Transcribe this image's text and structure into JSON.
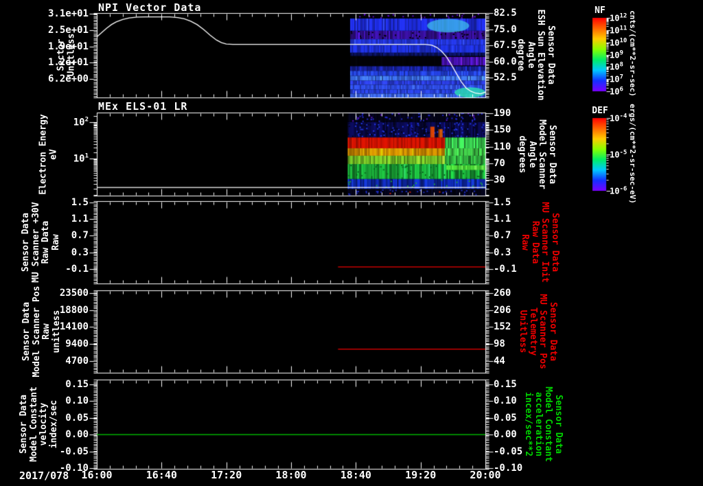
{
  "page": {
    "background": "#000000",
    "text_color": "#ffffff",
    "date_label": "2017/078"
  },
  "chart_data": {
    "type": "multi-panel time series (2 spectrograms + 3 line plots)",
    "x_axis": {
      "date": "2017/078",
      "t_start_min": 0,
      "t_end_min": 240,
      "major_tick_every_min": 40,
      "minor_tick_every_min": 8,
      "labels": [
        {
          "t": 0,
          "text": "16:00"
        },
        {
          "t": 40,
          "text": "16:40"
        },
        {
          "t": 80,
          "text": "17:20"
        },
        {
          "t": 120,
          "text": "18:00"
        },
        {
          "t": 160,
          "text": "18:40"
        },
        {
          "t": 200,
          "text": "19:20"
        },
        {
          "t": 240,
          "text": "20:00"
        }
      ]
    },
    "panels": [
      {
        "id": "npi",
        "type": "line+spectrogram",
        "title": "NPI Vector Data",
        "left_label": "Sector\nUnitless",
        "left_label_color": "#ffffff",
        "right_label": "Sensor Data\nESH Sun Elevation\nAngle\ndegree",
        "right_label_color": "#ffffff",
        "left_axis": {
          "min": -0.9,
          "max": 31.3,
          "ticks": [
            {
              "v": 31.0,
              "label": "3.1e+01"
            },
            {
              "v": 24.8,
              "label": "2.5e+01"
            },
            {
              "v": 18.6,
              "label": "1.9e+01"
            },
            {
              "v": 12.4,
              "label": "1.2e+01"
            },
            {
              "v": 6.2,
              "label": "6.2e+00"
            }
          ]
        },
        "right_axis": {
          "min": 43.3,
          "max": 82.6,
          "ticks": [
            {
              "v": 82.5,
              "label": "82.5"
            },
            {
              "v": 75.0,
              "label": "75.0"
            },
            {
              "v": 67.5,
              "label": "67.5"
            },
            {
              "v": 60.0,
              "label": "60.0"
            },
            {
              "v": 52.5,
              "label": "52.5"
            }
          ]
        },
        "series": [
          {
            "name": "esh-sun-elevation-angle",
            "axis": "right",
            "color": "#ffffff",
            "points": [
              [
                0,
                71.5
              ],
              [
                3,
                73.5
              ],
              [
                6,
                75.5
              ],
              [
                9,
                77.2
              ],
              [
                12,
                78.5
              ],
              [
                16,
                79.6
              ],
              [
                20,
                80.3
              ],
              [
                25,
                80.7
              ],
              [
                30,
                80.8
              ],
              [
                45,
                80.8
              ],
              [
                50,
                80.5
              ],
              [
                54,
                79.9
              ],
              [
                58,
                78.8
              ],
              [
                62,
                77.2
              ],
              [
                66,
                74.9
              ],
              [
                70,
                72.3
              ],
              [
                74,
                70.0
              ],
              [
                77,
                68.8
              ],
              [
                80,
                68.2
              ],
              [
                84,
                68.0
              ],
              [
                203,
                68.0
              ],
              [
                207,
                67.6
              ],
              [
                210,
                66.6
              ],
              [
                213,
                64.8
              ],
              [
                216,
                62.2
              ],
              [
                219,
                58.6
              ],
              [
                222,
                54.6
              ],
              [
                225,
                50.8
              ],
              [
                228,
                47.8
              ],
              [
                231,
                46.2
              ],
              [
                234,
                45.3
              ],
              [
                237,
                45.0
              ],
              [
                240,
                45.8
              ]
            ]
          }
        ],
        "spectrogram": {
          "t0": 156.5,
          "t1": 240,
          "bands": [
            {
              "f0": 0.0,
              "f1": 0.065,
              "base": "#020208",
              "var": 0.2,
              "speckles": [
                {
                  "color": "#5c08c8",
                  "density": 0.3
                }
              ]
            },
            {
              "f0": 0.065,
              "f1": 0.21,
              "base": "#1e2ce0",
              "var": 0.3
            },
            {
              "f0": 0.21,
              "f1": 0.31,
              "base": "#350f96",
              "var": 0.35,
              "speckles": [
                {
                  "color": "#000000",
                  "density": 0.3
                }
              ]
            },
            {
              "f0": 0.31,
              "f1": 0.38,
              "base": "#2336de",
              "var": 0.25
            },
            {
              "f0": 0.38,
              "f1": 0.47,
              "base": "#1e30d8",
              "var": 0.25
            },
            {
              "f0": 0.47,
              "f1": 0.51,
              "base": "#0a1260",
              "var": 0.4
            },
            {
              "f0": 0.51,
              "f1": 0.63,
              "base": "#030308",
              "var": 0.2
            },
            {
              "t0": 213,
              "f0": 0.52,
              "f1": 0.62,
              "base": "#4712b0",
              "var": 0.35
            },
            {
              "f0": 0.63,
              "f1": 0.685,
              "base": "#18229e",
              "var": 0.3
            },
            {
              "f0": 0.685,
              "f1": 0.745,
              "base": "#2442e6",
              "var": 0.3
            },
            {
              "f0": 0.745,
              "f1": 0.8,
              "base": "#3b6ef0",
              "var": 0.3
            },
            {
              "f0": 0.8,
              "f1": 0.85,
              "base": "#2a3cdc",
              "var": 0.25
            },
            {
              "f0": 0.85,
              "f1": 0.905,
              "base": "#2e4ce4",
              "var": 0.25
            },
            {
              "f0": 0.905,
              "f1": 0.955,
              "base": "#2840e0",
              "var": 0.25
            },
            {
              "f0": 0.955,
              "f1": 1.0,
              "base": "#3a64ee",
              "var": 0.3
            }
          ],
          "features": [
            {
              "type": "blob",
              "t0": 204,
              "t1": 230,
              "f0": 0.07,
              "f1": 0.23,
              "color": "#40c8ea",
              "alpha": 0.7
            },
            {
              "type": "blob",
              "t0": 221,
              "t1": 240,
              "f0": 0.88,
              "f1": 1.0,
              "color": "#2ce6b4",
              "alpha": 0.8
            }
          ]
        }
      },
      {
        "id": "els",
        "type": "spectrogram+line",
        "title": "MEx ELS-01 LR",
        "left_label": "Electron Energy\neV",
        "left_label_color": "#ffffff",
        "right_label": "Sensor Data\nModel Scanner\nAngle\ndegrees",
        "right_label_color": "#ffffff",
        "left_axis": {
          "scale": "log",
          "min": 0.95,
          "max": 185,
          "ticks": [
            {
              "v": 100,
              "label": "10^2",
              "exp": "2"
            },
            {
              "v": 10,
              "label": "10^1",
              "exp": "1"
            }
          ]
        },
        "right_axis": {
          "min": -7.7,
          "max": 191.5,
          "ticks": [
            {
              "v": 190,
              "label": "190"
            },
            {
              "v": 150,
              "label": "150"
            },
            {
              "v": 110,
              "label": "110"
            },
            {
              "v": 70,
              "label": "70"
            },
            {
              "v": 30,
              "label": "30"
            }
          ]
        },
        "series": [
          {
            "name": "energy-baseline-marker",
            "axis": "left",
            "color": "#ffffff",
            "points": [
              [
                0,
                1.6
              ],
              [
                240,
                1.6
              ]
            ]
          }
        ],
        "spectrogram": {
          "t0": 155,
          "t1": 240,
          "bands": [
            {
              "f0": 0.0,
              "f1": 0.115,
              "base": "#04041a",
              "var": 0.4,
              "speckles": [
                {
                  "color": "#2228cc",
                  "density": 0.3
                },
                {
                  "color": "#5a10c0",
                  "density": 0.08
                }
              ]
            },
            {
              "f0": 0.115,
              "f1": 0.3,
              "base": "#0a0a50",
              "var": 0.55,
              "speckles": [
                {
                  "color": "#2238e0",
                  "density": 0.35
                },
                {
                  "color": "#04041a",
                  "density": 0.25
                }
              ]
            },
            {
              "t1": 215,
              "f0": 0.3,
              "f1": 0.43,
              "base": "#e81400",
              "var": 0.3
            },
            {
              "t0": 215,
              "f0": 0.3,
              "f1": 0.43,
              "base": "#34b848",
              "var": 0.4
            },
            {
              "t1": 215,
              "f0": 0.43,
              "f1": 0.52,
              "base": "#eea000",
              "var": 0.3
            },
            {
              "t0": 215,
              "f0": 0.43,
              "f1": 0.52,
              "base": "#3cbc44",
              "var": 0.4
            },
            {
              "t1": 215,
              "f0": 0.52,
              "f1": 0.62,
              "base": "#7ed22a",
              "var": 0.35
            },
            {
              "t0": 215,
              "f0": 0.52,
              "f1": 0.62,
              "base": "#32b040",
              "var": 0.4
            },
            {
              "f0": 0.62,
              "f1": 0.8,
              "base": "#1cb43c",
              "var": 0.45,
              "speckles": [
                {
                  "color": "#0a6a20",
                  "density": 0.2
                }
              ]
            },
            {
              "t0": 216,
              "f0": 0.635,
              "f1": 0.69,
              "base": "#55e83c",
              "var": 0.25
            },
            {
              "f0": 0.8,
              "f1": 0.92,
              "base": "#1230c8",
              "var": 0.5,
              "speckles": [
                {
                  "color": "#1e9c46",
                  "density": 0.12
                }
              ]
            },
            {
              "f0": 0.92,
              "f1": 1.0,
              "base": "#04041a",
              "var": 0.5,
              "speckles": [
                {
                  "color": "#1c2cc0",
                  "density": 0.3
                },
                {
                  "color": "#cc2200",
                  "density": 0.02
                }
              ]
            },
            {
              "t0": 206,
              "t1": 208.5,
              "f0": 0.17,
              "f1": 0.3,
              "base": "#d84400",
              "var": 0.3
            },
            {
              "t0": 211,
              "t1": 213,
              "f0": 0.2,
              "f1": 0.3,
              "base": "#cc5500",
              "var": 0.3
            }
          ],
          "features": []
        }
      },
      {
        "id": "mu-scanner-30v",
        "type": "line",
        "left_label": "Sensor Data\nMU Scanner +30V\nRaw Data\nRaw",
        "left_label_color": "#ffffff",
        "right_label": "Sensor Data\nMU Scanner Init\nRaw Data\nRaw",
        "right_label_color": "#ee0000",
        "left_axis": {
          "min": -0.447,
          "max": 1.533,
          "ticks": [
            {
              "v": 1.5,
              "label": "1.5"
            },
            {
              "v": 1.1,
              "label": "1.1"
            },
            {
              "v": 0.7,
              "label": "0.7"
            },
            {
              "v": 0.3,
              "label": "0.3"
            },
            {
              "v": -0.1,
              "label": "-0.1"
            }
          ]
        },
        "right_axis": {
          "min": -0.447,
          "max": 1.533,
          "ticks": [
            {
              "v": 1.5,
              "label": "1.5"
            },
            {
              "v": 1.1,
              "label": "1.1"
            },
            {
              "v": 0.7,
              "label": "0.7"
            },
            {
              "v": 0.3,
              "label": "0.3"
            },
            {
              "v": -0.1,
              "label": "-0.1"
            }
          ]
        },
        "series": [
          {
            "name": "mu-scanner-init-raw",
            "axis": "right",
            "color": "#ee0000",
            "points": [
              [
                149,
                -0.05
              ],
              [
                240,
                -0.05
              ]
            ]
          }
        ]
      },
      {
        "id": "model-scanner-pos",
        "type": "line",
        "left_label": "Sensor Data\nModel Scanner Pos\nRaw\nunitless",
        "left_label_color": "#ffffff",
        "right_label": "Sensor Data\nMU Scanner Pos\nTelemetry\nUnitless",
        "right_label_color": "#ee0000",
        "left_axis": {
          "min": 1470,
          "max": 24260,
          "ticks": [
            {
              "v": 23500,
              "label": "23500"
            },
            {
              "v": 18800,
              "label": "18800"
            },
            {
              "v": 14100,
              "label": "14100"
            },
            {
              "v": 9400,
              "label": "9400"
            },
            {
              "v": 4700,
              "label": "4700"
            }
          ]
        },
        "right_axis": {
          "min": 6.9,
          "max": 268.7,
          "ticks": [
            {
              "v": 260,
              "label": "260"
            },
            {
              "v": 206,
              "label": "206"
            },
            {
              "v": 152,
              "label": "152"
            },
            {
              "v": 98,
              "label": "98"
            },
            {
              "v": 44,
              "label": "44"
            }
          ]
        },
        "series": [
          {
            "name": "mu-scanner-pos-telemetry",
            "axis": "right",
            "color": "#ee0000",
            "points": [
              [
                149,
                82
              ],
              [
                240,
                82
              ]
            ]
          }
        ]
      },
      {
        "id": "model-constant",
        "type": "line",
        "left_label": "Sensor Data\nModel Constant\nvelocity\nindex/sec",
        "left_label_color": "#ffffff",
        "right_label": "Sensor Data\nModel Constant\nacceleration\nincex/sec**2",
        "right_label_color": "#00d400",
        "left_axis": {
          "min": -0.1021,
          "max": 0.1643,
          "ticks": [
            {
              "v": 0.15,
              "label": "0.15"
            },
            {
              "v": 0.1,
              "label": "0.10"
            },
            {
              "v": 0.05,
              "label": "0.05"
            },
            {
              "v": 0.0,
              "label": "0.00"
            },
            {
              "v": -0.05,
              "label": "-0.05"
            },
            {
              "v": -0.1,
              "label": "-0.10"
            }
          ]
        },
        "right_axis": {
          "min": -0.1021,
          "max": 0.1643,
          "ticks": [
            {
              "v": 0.15,
              "label": "0.15"
            },
            {
              "v": 0.1,
              "label": "0.10"
            },
            {
              "v": 0.05,
              "label": "0.05"
            },
            {
              "v": 0.0,
              "label": "0.00"
            },
            {
              "v": -0.05,
              "label": "-0.05"
            },
            {
              "v": -0.1,
              "label": "-0.10"
            }
          ]
        },
        "series": [
          {
            "name": "model-constant-velocity",
            "axis": "left",
            "color": "#00d400",
            "points": [
              [
                0,
                0.0
              ],
              [
                240,
                0.0
              ]
            ]
          }
        ]
      }
    ],
    "colorbars": [
      {
        "id": "NF",
        "title": "NF",
        "units": "cnts/(cm**2-sr-sec)",
        "scale": "log",
        "ticks": [
          {
            "label": "10^12",
            "exp": "12"
          },
          {
            "label": "10^11",
            "exp": "11"
          },
          {
            "label": "10^10",
            "exp": "10"
          },
          {
            "label": "10^9",
            "exp": "9"
          },
          {
            "label": "10^8",
            "exp": "8"
          },
          {
            "label": "10^7",
            "exp": "7"
          },
          {
            "label": "10^6",
            "exp": "6"
          }
        ],
        "gradient_top_to_bottom": [
          "#ff0000",
          "#ff6600",
          "#ffcc00",
          "#88ff00",
          "#00ee66",
          "#00c8ff",
          "#1430ff",
          "#7a00ff"
        ]
      },
      {
        "id": "DEF",
        "title": "DEF",
        "units": "ergs/(cm**2-sr-sec-eV)",
        "scale": "log",
        "ticks": [
          {
            "label": "10^-4",
            "exp": "-4"
          },
          {
            "label": "10^-5",
            "exp": "-5"
          },
          {
            "label": "10^-6",
            "exp": "-6"
          }
        ],
        "gradient_top_to_bottom": [
          "#ff0000",
          "#ff6600",
          "#ffcc00",
          "#88ff00",
          "#00ee66",
          "#00c8ff",
          "#1430ff",
          "#7a00ff"
        ]
      }
    ]
  }
}
